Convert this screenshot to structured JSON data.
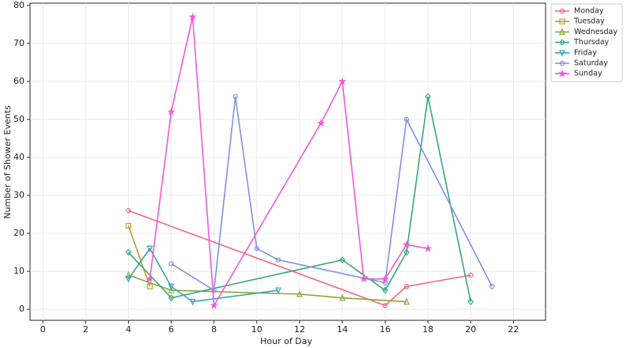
{
  "chart_data": {
    "type": "line",
    "x_label": "Hour of Day",
    "y_label": "Number of Shower Events",
    "xlim": [
      -0.6,
      23.5
    ],
    "ylim": [
      -2.9,
      80.6
    ],
    "xticks": [
      0,
      2,
      4,
      6,
      8,
      10,
      12,
      14,
      16,
      18,
      20,
      22
    ],
    "yticks": [
      0,
      10,
      20,
      30,
      40,
      50,
      60,
      70,
      80
    ],
    "grid": true,
    "legend": "outside-upper-right",
    "series": [
      {
        "name": "Monday",
        "color": "#f0677e",
        "marker": "circle",
        "x": [
          4,
          16,
          17,
          20
        ],
        "values": [
          26,
          1,
          6,
          9
        ]
      },
      {
        "name": "Tuesday",
        "color": "#c49a38",
        "marker": "square",
        "x": [
          4,
          5
        ],
        "values": [
          22,
          6
        ]
      },
      {
        "name": "Wednesday",
        "color": "#8aa83a",
        "marker": "triangle-up",
        "x": [
          4,
          6,
          12,
          14,
          17
        ],
        "values": [
          9,
          5,
          4,
          3,
          2
        ]
      },
      {
        "name": "Thursday",
        "color": "#35a77d",
        "marker": "diamond",
        "x": [
          4,
          6,
          14,
          16,
          17,
          18,
          20
        ],
        "values": [
          15,
          3,
          13,
          5,
          15,
          56,
          2
        ]
      },
      {
        "name": "Friday",
        "color": "#36a4b5",
        "marker": "triangle-down",
        "x": [
          4,
          5,
          6,
          7,
          11
        ],
        "values": [
          8,
          16,
          6,
          2,
          5
        ]
      },
      {
        "name": "Saturday",
        "color": "#8190e8",
        "marker": "circle",
        "x": [
          6,
          8,
          9,
          10,
          11,
          16,
          17,
          21
        ],
        "values": [
          12,
          5,
          56,
          16,
          13,
          7,
          50,
          6
        ]
      },
      {
        "name": "Sunday",
        "color": "#f159d8",
        "marker": "star",
        "x": [
          5,
          6,
          7,
          8,
          13,
          14,
          15,
          16,
          17,
          18
        ],
        "values": [
          8,
          52,
          77,
          1,
          49,
          60,
          8,
          8,
          17,
          16
        ]
      }
    ]
  }
}
